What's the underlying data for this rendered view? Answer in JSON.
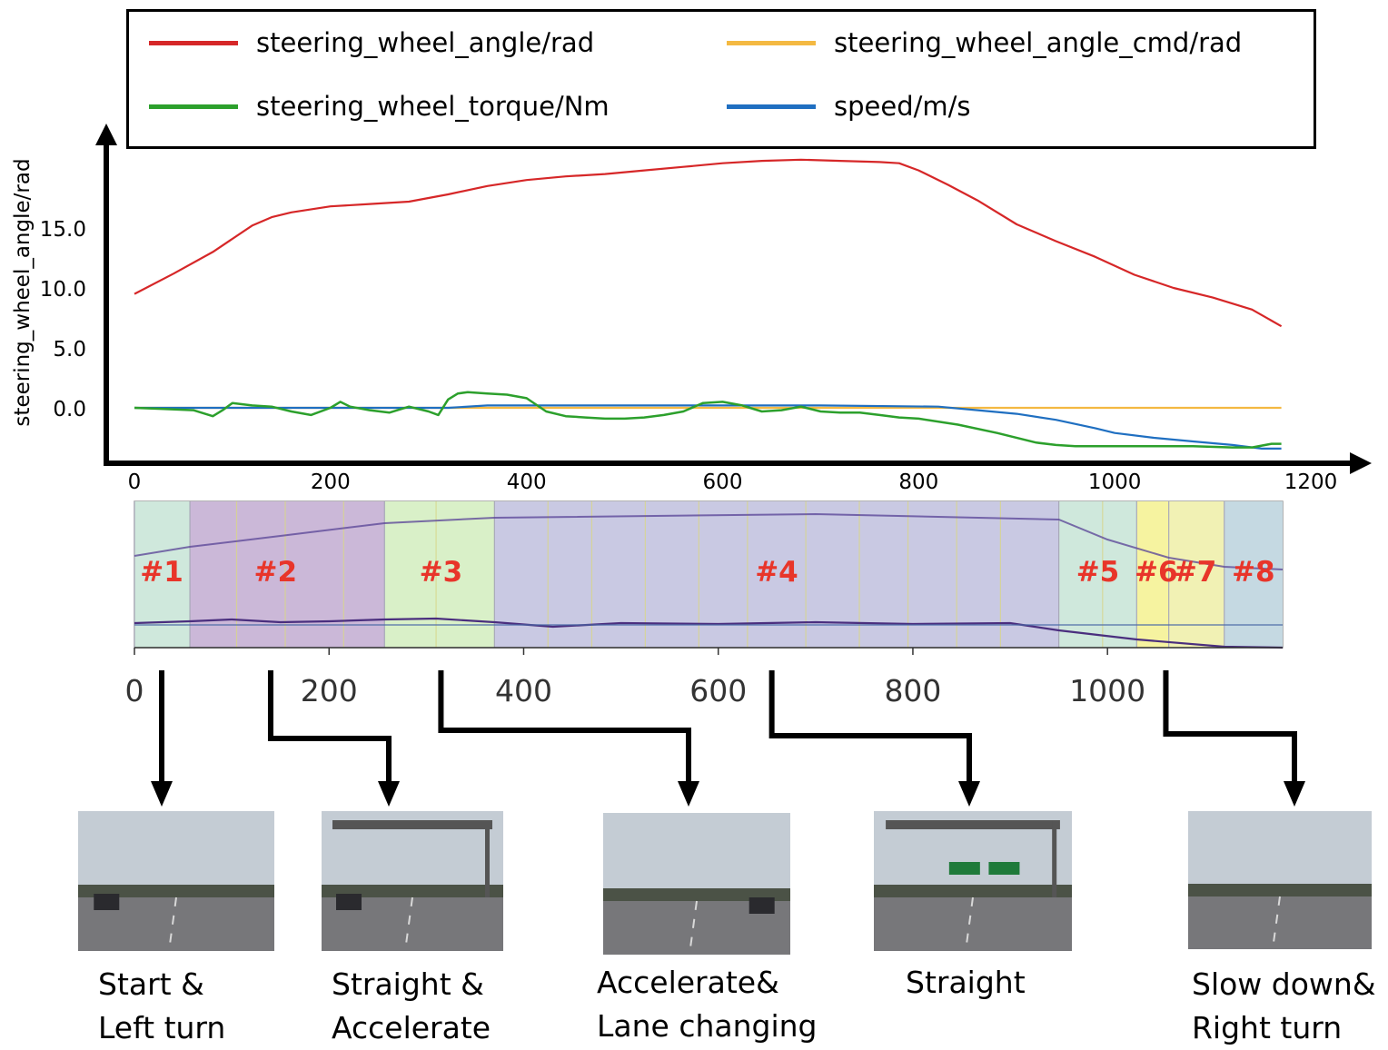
{
  "legend": {
    "items": [
      {
        "label": "steering_wheel_angle/rad",
        "color": "#d62728"
      },
      {
        "label": "steering_wheel_angle_cmd/rad",
        "color": "#f4b942"
      },
      {
        "label": "steering_wheel_torque/Nm",
        "color": "#2ca02c"
      },
      {
        "label": "speed/m/s",
        "color": "#1f6fc1"
      }
    ]
  },
  "chart_data": [
    {
      "type": "line",
      "ylabel": "steering_wheel_angle/rad",
      "xlabel": "",
      "x_ticks": [
        "0",
        "200",
        "400",
        "600",
        "800",
        "1000",
        "1200"
      ],
      "y_ticks": [
        "0.0",
        "5.0",
        "10.0",
        "15.0"
      ],
      "xlim": [
        0,
        1220
      ],
      "ylim": [
        -4,
        19.5
      ],
      "series": [
        {
          "name": "steering_wheel_angle/rad",
          "color": "#d62728",
          "x": [
            0,
            40,
            80,
            120,
            140,
            160,
            200,
            240,
            280,
            320,
            360,
            400,
            440,
            480,
            520,
            560,
            600,
            640,
            680,
            720,
            760,
            780,
            800,
            830,
            860,
            900,
            940,
            980,
            1020,
            1060,
            1100,
            1140,
            1170
          ],
          "y": [
            9.5,
            11.2,
            13.0,
            15.2,
            15.9,
            16.3,
            16.8,
            17.0,
            17.2,
            17.8,
            18.5,
            19.0,
            19.3,
            19.5,
            19.8,
            20.1,
            20.4,
            20.6,
            20.7,
            20.6,
            20.5,
            20.4,
            19.8,
            18.6,
            17.3,
            15.3,
            13.9,
            12.6,
            11.1,
            10.0,
            9.2,
            8.2,
            6.8
          ]
        },
        {
          "name": "steering_wheel_angle_cmd/rad",
          "color": "#f4b942",
          "x": [
            0,
            1170
          ],
          "y": [
            0.0,
            0.0
          ]
        },
        {
          "name": "steering_wheel_torque/Nm",
          "color": "#2ca02c",
          "x": [
            0,
            30,
            60,
            80,
            90,
            100,
            120,
            140,
            160,
            180,
            200,
            210,
            220,
            240,
            260,
            280,
            300,
            310,
            320,
            330,
            340,
            360,
            380,
            400,
            420,
            440,
            460,
            480,
            500,
            520,
            540,
            560,
            580,
            600,
            620,
            640,
            660,
            680,
            700,
            720,
            740,
            760,
            780,
            800,
            840,
            880,
            920,
            940,
            960,
            1000,
            1040,
            1080,
            1120,
            1140,
            1160,
            1170
          ],
          "y": [
            0.0,
            -0.1,
            -0.2,
            -0.7,
            -0.2,
            0.4,
            0.2,
            0.1,
            -0.3,
            -0.6,
            0.0,
            0.5,
            0.1,
            -0.2,
            -0.4,
            0.1,
            -0.3,
            -0.6,
            0.7,
            1.2,
            1.3,
            1.2,
            1.1,
            0.8,
            -0.3,
            -0.7,
            -0.8,
            -0.9,
            -0.9,
            -0.8,
            -0.6,
            -0.3,
            0.4,
            0.5,
            0.2,
            -0.3,
            -0.2,
            0.1,
            -0.3,
            -0.4,
            -0.4,
            -0.6,
            -0.8,
            -0.9,
            -1.4,
            -2.1,
            -2.9,
            -3.1,
            -3.2,
            -3.2,
            -3.2,
            -3.2,
            -3.3,
            -3.3,
            -3.0,
            -3.0
          ]
        },
        {
          "name": "speed/m/s",
          "color": "#1f6fc1",
          "x": [
            0,
            320,
            360,
            700,
            820,
            860,
            900,
            940,
            980,
            1000,
            1040,
            1080,
            1120,
            1150,
            1170
          ],
          "y": [
            0.0,
            0.0,
            0.2,
            0.2,
            0.1,
            -0.2,
            -0.5,
            -1.0,
            -1.7,
            -2.1,
            -2.5,
            -2.8,
            -3.1,
            -3.4,
            -3.4
          ]
        }
      ]
    },
    {
      "type": "area",
      "title": "",
      "x_ticks": [
        "0",
        "200",
        "400",
        "600",
        "800",
        "1000"
      ],
      "xlim": [
        0,
        1180
      ],
      "segments": [
        {
          "label": "#1",
          "start": 0,
          "end": 57,
          "color": "#cfe8dc"
        },
        {
          "label": "#2",
          "start": 57,
          "end": 257,
          "color": "#cbb8d8"
        },
        {
          "label": "#3",
          "start": 257,
          "end": 370,
          "color": "#d9f0c8"
        },
        {
          "label": "#4",
          "start": 370,
          "end": 950,
          "color": "#c9c9e3"
        },
        {
          "label": "#5",
          "start": 950,
          "end": 1030,
          "color": "#cfe8dc"
        },
        {
          "label": "#6",
          "start": 1030,
          "end": 1063,
          "color": "#f6f3a0"
        },
        {
          "label": "#7",
          "start": 1063,
          "end": 1120,
          "color": "#f1f1b4"
        },
        {
          "label": "#8",
          "start": 1120,
          "end": 1180,
          "color": "#c5d9e2"
        }
      ],
      "label_color": "#e8352a"
    }
  ],
  "frames": [
    {
      "caption_line1": "Start &",
      "caption_line2": "Left turn",
      "x_value": 30
    },
    {
      "caption_line1": "Straight &",
      "caption_line2": "Accelerate",
      "x_value": 140
    },
    {
      "caption_line1": "Accelerate&",
      "caption_line2": "Lane changing",
      "x_value": 315
    },
    {
      "caption_line1": "Straight",
      "caption_line2": "",
      "x_value": 655
    },
    {
      "caption_line1": "Slow down&",
      "caption_line2": "Right turn",
      "x_value": 1060
    }
  ]
}
